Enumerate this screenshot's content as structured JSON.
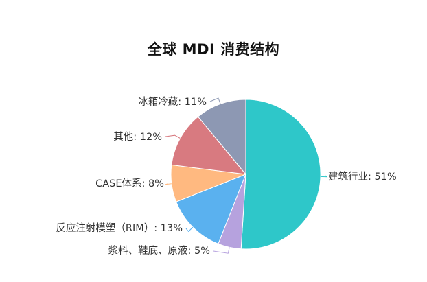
{
  "chart_data": {
    "type": "pie",
    "title": "全球 MDI 消费结构",
    "slices": [
      {
        "label": "建筑行业: 51%",
        "name": "建筑行业",
        "value": 51,
        "color": "#2ec7c9"
      },
      {
        "label": "浆料、鞋底、原液: 5%",
        "name": "浆料、鞋底、原液",
        "value": 5,
        "color": "#b6a2de"
      },
      {
        "label": "反应注射模塑（RIM）: 13%",
        "name": "反应注射模塑（RIM）",
        "value": 13,
        "color": "#5ab1ef"
      },
      {
        "label": "CASE体系: 8%",
        "name": "CASE体系",
        "value": 8,
        "color": "#ffb980"
      },
      {
        "label": "其他: 12%",
        "name": "其他",
        "value": 12,
        "color": "#d87a80"
      },
      {
        "label": "冰箱冷藏: 11%",
        "name": "冰箱冷藏",
        "value": 11,
        "color": "#8d98b3"
      }
    ]
  }
}
